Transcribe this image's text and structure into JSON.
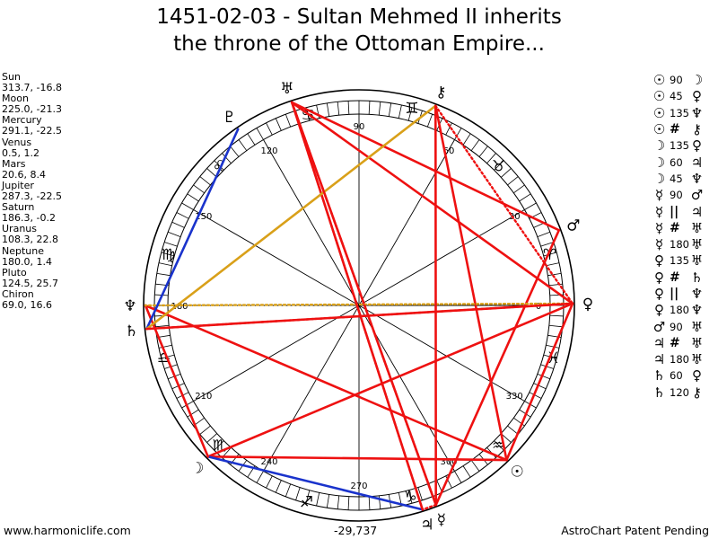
{
  "title_line1": "1451-02-03 - Sultan Mehmed II inherits",
  "title_line2": "the throne of the Ottoman Empire...",
  "positions": [
    {
      "name": "Sun",
      "coords": "313.7, -16.8"
    },
    {
      "name": "Moon",
      "coords": "225.0, -21.3"
    },
    {
      "name": "Mercury",
      "coords": "291.1, -22.5"
    },
    {
      "name": "Venus",
      "coords": "0.5, 1.2"
    },
    {
      "name": "Mars",
      "coords": "20.6, 8.4"
    },
    {
      "name": "Jupiter",
      "coords": "287.3, -22.5"
    },
    {
      "name": "Saturn",
      "coords": "186.3, -0.2"
    },
    {
      "name": "Uranus",
      "coords": "108.3, 22.8"
    },
    {
      "name": "Neptune",
      "coords": "180.0, 1.4"
    },
    {
      "name": "Pluto",
      "coords": "124.5, 25.7"
    },
    {
      "name": "Chiron",
      "coords": "69.0, 16.6"
    }
  ],
  "aspects": [
    {
      "p1": "☉",
      "val": "90",
      "p2": "☽"
    },
    {
      "p1": "☉",
      "val": "45",
      "p2": "♀"
    },
    {
      "p1": "☉",
      "val": "135",
      "p2": "♆"
    },
    {
      "p1": "☉",
      "val": "#",
      "p2": "⚷"
    },
    {
      "p1": "☽",
      "val": "135",
      "p2": "♀"
    },
    {
      "p1": "☽",
      "val": "60",
      "p2": "♃"
    },
    {
      "p1": "☽",
      "val": "45",
      "p2": "♆"
    },
    {
      "p1": "☿",
      "val": "90",
      "p2": "♂"
    },
    {
      "p1": "☿",
      "val": "||",
      "p2": "♃"
    },
    {
      "p1": "☿",
      "val": "#",
      "p2": "♅"
    },
    {
      "p1": "☿",
      "val": "180",
      "p2": "♅"
    },
    {
      "p1": "♀",
      "val": "135",
      "p2": "♅"
    },
    {
      "p1": "♀",
      "val": "#",
      "p2": "♄"
    },
    {
      "p1": "♀",
      "val": "||",
      "p2": "♆"
    },
    {
      "p1": "♀",
      "val": "180",
      "p2": "♆"
    },
    {
      "p1": "♂",
      "val": "90",
      "p2": "♅"
    },
    {
      "p1": "♃",
      "val": "#",
      "p2": "♅"
    },
    {
      "p1": "♃",
      "val": "180",
      "p2": "♅"
    },
    {
      "p1": "♄",
      "val": "60",
      "p2": "♀"
    },
    {
      "p1": "♄",
      "val": "120",
      "p2": "⚷"
    }
  ],
  "ecliptic_labels": [
    "0",
    "30",
    "60",
    "90",
    "120",
    "150",
    "180",
    "210",
    "240",
    "270",
    "300",
    "330"
  ],
  "signs": [
    "♈",
    "♉",
    "♊",
    "♋",
    "♌",
    "♍",
    "♎",
    "♏",
    "♐",
    "♑",
    "♒",
    "♓"
  ],
  "planet_glyphs": {
    "Sun": "☉",
    "Moon": "☽",
    "Mercury": "☿",
    "Venus": "♀",
    "Mars": "♂",
    "Jupiter": "♃",
    "Saturn": "♄",
    "Uranus": "♅",
    "Neptune": "♆",
    "Pluto": "♇",
    "Chiron": "⚷"
  },
  "colors": {
    "hard_aspect": "#ee1111",
    "soft_aspect": "#1a33cc",
    "minor_aspect": "#d9a019",
    "wheel": "#000000"
  },
  "footer": {
    "left": "www.harmoniclife.com",
    "center": "-29,737",
    "right": "AstroChart Patent Pending"
  }
}
